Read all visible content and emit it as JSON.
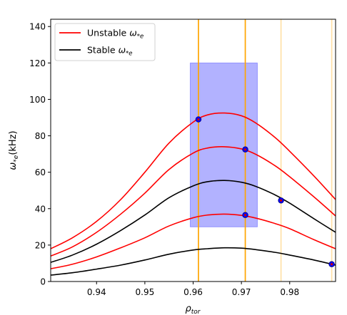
{
  "chart_data": {
    "type": "line",
    "title": "",
    "xlabel": "ρ",
    "xlabel_sub": "tor",
    "ylabel_main": "ω",
    "ylabel_sub": "*e",
    "ylabel_unit": "(kHz)",
    "xlim": [
      0.9305,
      0.9895
    ],
    "ylim": [
      0,
      144
    ],
    "xticks": [
      0.94,
      0.95,
      0.96,
      0.97,
      0.98
    ],
    "yticks": [
      0,
      20,
      40,
      60,
      80,
      100,
      120,
      140
    ],
    "legend": {
      "placement": "top-left",
      "entries": [
        {
          "prefix": "Unstable ",
          "sym": "ω",
          "sub": "*e",
          "color": "#ff0000"
        },
        {
          "prefix": "Stable ",
          "sym": "ω",
          "sub": "*e",
          "color": "#000000"
        }
      ]
    },
    "x": [
      0.9305,
      0.935,
      0.94,
      0.945,
      0.95,
      0.955,
      0.96,
      0.963,
      0.9665,
      0.97,
      0.973,
      0.977,
      0.98,
      0.985,
      0.9895
    ],
    "series": [
      {
        "stability": "unstable",
        "color": "#ff0000",
        "values": [
          18,
          24,
          33,
          45,
          60,
          76,
          87.5,
          91.5,
          92.5,
          91,
          87,
          79,
          71.5,
          58,
          45
        ]
      },
      {
        "stability": "unstable",
        "color": "#ff0000",
        "values": [
          14,
          19,
          27,
          37,
          48.5,
          61.5,
          70.5,
          73.3,
          74,
          72.8,
          69.8,
          63.5,
          57.5,
          46.5,
          36
        ]
      },
      {
        "stability": "stable",
        "color": "#000000",
        "values": [
          10.5,
          14.5,
          20.5,
          28,
          36.5,
          46,
          52.5,
          54.8,
          55.5,
          54.5,
          52.2,
          47.5,
          43,
          34.5,
          27
        ]
      },
      {
        "stability": "unstable",
        "color": "#ff0000",
        "values": [
          7,
          9.5,
          13.5,
          18.5,
          24,
          30.5,
          35,
          36.5,
          37,
          36.3,
          34.8,
          31.8,
          29,
          23,
          18
        ]
      },
      {
        "stability": "stable",
        "color": "#000000",
        "values": [
          3.5,
          4.8,
          6.8,
          9,
          11.8,
          15,
          17.3,
          18,
          18.5,
          18.3,
          17.5,
          16,
          14.5,
          11.8,
          9
        ]
      }
    ],
    "shaded_region": {
      "x": [
        0.9594,
        0.9733
      ],
      "y": [
        30,
        120
      ],
      "color": "#0000ff",
      "opacity": 0.3
    },
    "vlines": [
      {
        "x": 0.9611,
        "color": "#ffa500",
        "alpha": 1.0
      },
      {
        "x": 0.9708,
        "color": "#ffa500",
        "alpha": 1.0
      },
      {
        "x": 0.9782,
        "color": "#ffa500",
        "alpha": 0.35
      },
      {
        "x": 0.9887,
        "color": "#ffa500",
        "alpha": 0.35
      }
    ],
    "markers": [
      {
        "x": 0.9611,
        "y": 89
      },
      {
        "x": 0.9708,
        "y": 72.5
      },
      {
        "x": 0.9708,
        "y": 36.5
      },
      {
        "x": 0.9782,
        "y": 44.5
      },
      {
        "x": 0.9887,
        "y": 9.5
      }
    ],
    "grid": false
  }
}
